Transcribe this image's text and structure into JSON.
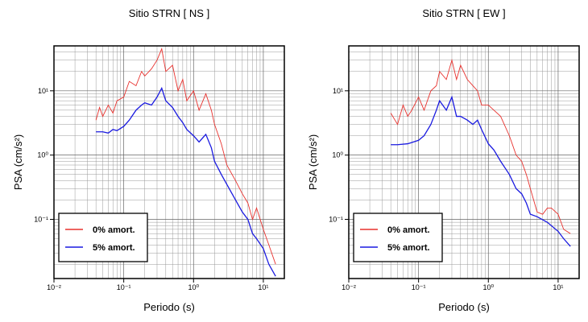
{
  "chart_data": [
    {
      "type": "line",
      "title": "Sitio STRN [ NS ]",
      "x_label": "Periodo (s)",
      "y_label": "PSA (cm/s²)",
      "xscale": "log",
      "yscale": "log",
      "grid": true,
      "legend": "lower left",
      "xlim": [
        0.01,
        20
      ],
      "ylim": [
        0.012,
        50
      ],
      "xticks": [
        {
          "value": 0.01,
          "label": "10⁻²"
        },
        {
          "value": 0.1,
          "label": "10⁻¹"
        },
        {
          "value": 1,
          "label": "10⁰"
        },
        {
          "value": 10,
          "label": "10¹"
        }
      ],
      "yticks": [
        {
          "value": 0.1,
          "label": "10⁻¹"
        },
        {
          "value": 1,
          "label": "10⁰"
        },
        {
          "value": 10,
          "label": "10¹"
        }
      ],
      "xminor": [
        0.02,
        0.03,
        0.04,
        0.05,
        0.06,
        0.07,
        0.08,
        0.09,
        0.2,
        0.3,
        0.4,
        0.5,
        0.6,
        0.7,
        0.8,
        0.9,
        2,
        3,
        4,
        5,
        6,
        7,
        8,
        9,
        20
      ],
      "yminor": [
        0.02,
        0.03,
        0.04,
        0.05,
        0.06,
        0.07,
        0.08,
        0.09,
        0.2,
        0.3,
        0.4,
        0.5,
        0.6,
        0.7,
        0.8,
        0.9,
        2,
        3,
        4,
        5,
        6,
        7,
        8,
        9,
        20,
        30,
        40,
        50
      ],
      "series": [
        {
          "name": "0% amort.",
          "color": "#e8312d",
          "x": [
            0.04,
            0.045,
            0.05,
            0.06,
            0.07,
            0.08,
            0.1,
            0.12,
            0.15,
            0.18,
            0.2,
            0.25,
            0.3,
            0.35,
            0.4,
            0.5,
            0.6,
            0.7,
            0.8,
            1.0,
            1.2,
            1.5,
            1.8,
            2.0,
            2.5,
            3,
            4,
            5,
            6,
            7,
            8,
            10,
            12,
            15
          ],
          "values": [
            3.5,
            5.5,
            4,
            6,
            4.5,
            7,
            8,
            14,
            12,
            20,
            17,
            22,
            30,
            45,
            20,
            25,
            10,
            15,
            7,
            10,
            5,
            9,
            5,
            3,
            1.5,
            0.7,
            0.4,
            0.25,
            0.18,
            0.1,
            0.15,
            0.07,
            0.04,
            0.02
          ]
        },
        {
          "name": "5% amort.",
          "color": "#1a1ae0",
          "x": [
            0.04,
            0.05,
            0.06,
            0.07,
            0.08,
            0.1,
            0.12,
            0.15,
            0.18,
            0.2,
            0.25,
            0.3,
            0.35,
            0.4,
            0.5,
            0.6,
            0.7,
            0.8,
            1.0,
            1.2,
            1.5,
            1.8,
            2.0,
            2.5,
            3.0,
            4,
            5,
            6,
            7,
            8,
            10,
            12,
            15
          ],
          "values": [
            2.3,
            2.3,
            2.2,
            2.5,
            2.4,
            2.8,
            3.5,
            5,
            6,
            6.5,
            6,
            8,
            11,
            7,
            5.5,
            4,
            3.2,
            2.5,
            2.0,
            1.6,
            2.1,
            1.3,
            0.8,
            0.5,
            0.35,
            0.2,
            0.13,
            0.1,
            0.06,
            0.05,
            0.035,
            0.02,
            0.013
          ]
        }
      ]
    },
    {
      "type": "line",
      "title": "Sitio STRN [ EW ]",
      "x_label": "Periodo (s)",
      "y_label": "PSA (cm/s²)",
      "xscale": "log",
      "yscale": "log",
      "grid": true,
      "legend": "lower left",
      "xlim": [
        0.01,
        20
      ],
      "ylim": [
        0.012,
        50
      ],
      "xticks": [
        {
          "value": 0.01,
          "label": "10⁻²"
        },
        {
          "value": 0.1,
          "label": "10⁻¹"
        },
        {
          "value": 1,
          "label": "10⁰"
        },
        {
          "value": 10,
          "label": "10¹"
        }
      ],
      "yticks": [
        {
          "value": 0.1,
          "label": "10⁻¹"
        },
        {
          "value": 1,
          "label": "10⁰"
        },
        {
          "value": 10,
          "label": "10¹"
        }
      ],
      "xminor": [
        0.02,
        0.03,
        0.04,
        0.05,
        0.06,
        0.07,
        0.08,
        0.09,
        0.2,
        0.3,
        0.4,
        0.5,
        0.6,
        0.7,
        0.8,
        0.9,
        2,
        3,
        4,
        5,
        6,
        7,
        8,
        9,
        20
      ],
      "yminor": [
        0.02,
        0.03,
        0.04,
        0.05,
        0.06,
        0.07,
        0.08,
        0.09,
        0.2,
        0.3,
        0.4,
        0.5,
        0.6,
        0.7,
        0.8,
        0.9,
        2,
        3,
        4,
        5,
        6,
        7,
        8,
        9,
        20,
        30,
        40,
        50
      ],
      "series": [
        {
          "name": "0% amort.",
          "color": "#e8312d",
          "x": [
            0.04,
            0.05,
            0.06,
            0.07,
            0.08,
            0.1,
            0.12,
            0.15,
            0.18,
            0.2,
            0.25,
            0.3,
            0.35,
            0.4,
            0.5,
            0.6,
            0.7,
            0.8,
            1.0,
            1.2,
            1.5,
            2,
            2.5,
            3,
            3.5,
            4,
            5,
            6,
            7,
            8,
            10,
            12,
            15
          ],
          "values": [
            4.5,
            3,
            6,
            4,
            5,
            8,
            5,
            10,
            12,
            20,
            15,
            30,
            15,
            25,
            15,
            12,
            10,
            6,
            6,
            5,
            4,
            2,
            1,
            0.8,
            0.5,
            0.3,
            0.13,
            0.12,
            0.15,
            0.15,
            0.12,
            0.07,
            0.06
          ]
        },
        {
          "name": "5% amort.",
          "color": "#1a1ae0",
          "x": [
            0.04,
            0.05,
            0.07,
            0.1,
            0.12,
            0.15,
            0.18,
            0.2,
            0.25,
            0.3,
            0.35,
            0.4,
            0.5,
            0.6,
            0.7,
            0.8,
            1.0,
            1.2,
            1.5,
            2,
            2.5,
            3,
            3.5,
            4,
            5,
            7,
            10,
            12,
            15
          ],
          "values": [
            1.45,
            1.45,
            1.5,
            1.7,
            2,
            3,
            5,
            7,
            5,
            8,
            4,
            4,
            3.5,
            3,
            3.5,
            2.5,
            1.5,
            1.2,
            0.8,
            0.5,
            0.3,
            0.25,
            0.18,
            0.12,
            0.11,
            0.09,
            0.065,
            0.05,
            0.038
          ]
        }
      ]
    }
  ]
}
